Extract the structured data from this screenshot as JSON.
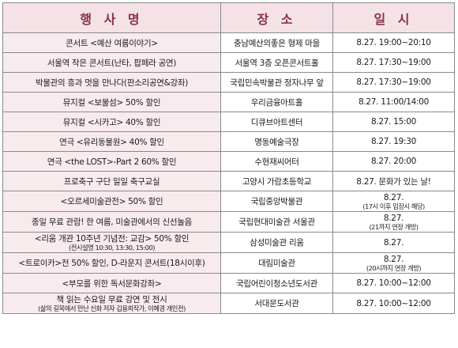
{
  "headers": {
    "event": "행 사 명",
    "place": "장 소",
    "date": "일 시"
  },
  "rows": [
    {
      "event": "콘서트 <예산 여름이야기>",
      "place": "충남예산의좋은 형제 마을",
      "date": "8.27. 19:00~20:10"
    },
    {
      "event": "서울역 작은 콘서트(난타, 팝페라 공연)",
      "place": "서울역 3층 오픈콘서트홀",
      "date": "8.27. 17:30~19:00"
    },
    {
      "event": "박물관의 흥과 멋을 만나다(판소리공연&강좌)",
      "place": "국립민속박물관 정자나무 앞",
      "date": "8.27. 17:30~19:00"
    },
    {
      "event": "뮤지컬 <보물섬> 50% 할인",
      "place": "우리금융아트홀",
      "date": "8.27. 11:00/14:00"
    },
    {
      "event": "뮤지컬 <시카고> 40% 할인",
      "place": "디큐브아트센터",
      "date": "8.27. 15:00"
    },
    {
      "event": "연극 <유리동물원> 40% 할인",
      "place": "명동예술극장",
      "date": "8.27. 19:30"
    },
    {
      "event": "연극 <the LOST>-Part 2 60% 할인",
      "place": "수현재씨어터",
      "date": "8.27. 20:00"
    },
    {
      "event": "프로축구 구단 일일 축구교실",
      "place": "고양시 가람초등학교",
      "date": "8.27. 문화가 있는 날!"
    },
    {
      "event": "<오르세미술관전> 50% 할인",
      "place": "국립중앙박물관",
      "date": "8.27.",
      "date_sub": "(17시 이후 입장시 해당)"
    },
    {
      "event": "종일 무료 관람! 한 여름, 미술관에서의 신선놀음",
      "place": "국립현대미술관 서울관",
      "date": "8.27.",
      "date_sub": "(21까지 연장 개방)"
    },
    {
      "event": "<리움 개관 10주년 기념전: 교감> 50% 할인",
      "event_sub": "(전시설명 10:30, 13:30, 15:00)",
      "place": "삼성미술관 리움",
      "date": "8.27."
    },
    {
      "event": "<트로이카>전 50% 할인, D-라운지 콘서트(18시이후)",
      "place": "대림미술관",
      "date": "8.27.",
      "date_sub": "(20시까지 연장 개방)"
    },
    {
      "event": "<부모를 위한 독서문화강좌>",
      "place": "국립어린이청소년도서관",
      "date": "8.27. 10:00~12:00"
    },
    {
      "event": "책 읽는 수요일 무료 강연 및 전시",
      "event_sub": "(삶의 길목에서 만난 신화 저자 김용희작가, 이혜경 개인전)",
      "place": "서대문도서관",
      "date": "8.27. 10:00~12:00"
    }
  ]
}
